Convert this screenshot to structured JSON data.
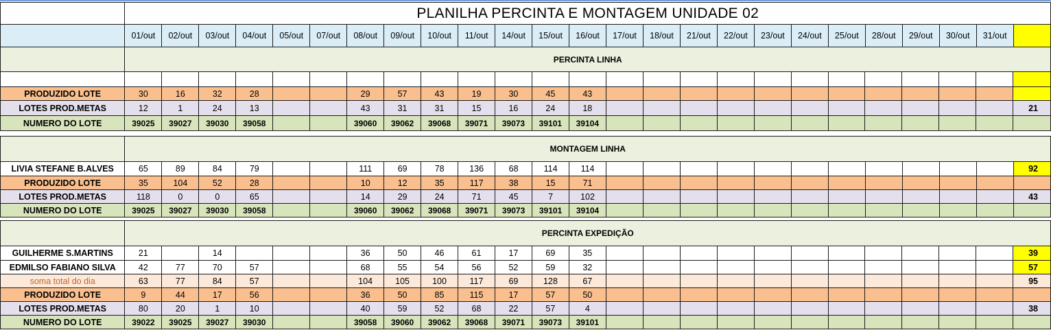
{
  "title": "PLANILHA PERCINTA E MONTAGEM UNIDADE 02",
  "dates": [
    "01/out",
    "02/out",
    "03/out",
    "04/out",
    "05/out",
    "07/out",
    "08/out",
    "09/out",
    "10/out",
    "11/out",
    "14/out",
    "15/out",
    "16/out",
    "17/out",
    "18/out",
    "21/out",
    "22/out",
    "23/out",
    "24/out",
    "25/out",
    "28/out",
    "29/out",
    "30/out",
    "31/out"
  ],
  "colors": {
    "header_bg": "#dbeef7",
    "section_bg": "#ebf1de",
    "produzido_bg": "#fabf8f",
    "metas_bg": "#e4dfec",
    "lote_bg": "#d8e4bc",
    "soma_bg": "#fde9d9",
    "highlight": "#ffff00"
  },
  "sections": [
    {
      "title": "PERCINTA LINHA",
      "rows": [
        {
          "label": "",
          "style": "white",
          "values": [
            "",
            "",
            "",
            "",
            "",
            "",
            "",
            "",
            "",
            "",
            "",
            "",
            "",
            "",
            "",
            "",
            "",
            "",
            "",
            "",
            "",
            "",
            "",
            ""
          ],
          "total": "",
          "total_yellow": true
        },
        {
          "label": "PRODUZIDO LOTE",
          "style": "orange",
          "values": [
            "30",
            "16",
            "32",
            "28",
            "",
            "",
            "29",
            "57",
            "43",
            "19",
            "30",
            "45",
            "43",
            "",
            "",
            "",
            "",
            "",
            "",
            "",
            "",
            "",
            "",
            ""
          ],
          "total": "",
          "total_yellow": true
        },
        {
          "label": "LOTES PROD.METAS",
          "style": "lav",
          "values": [
            "12",
            "1",
            "24",
            "13",
            "",
            "",
            "43",
            "31",
            "31",
            "15",
            "16",
            "24",
            "18",
            "",
            "",
            "",
            "",
            "",
            "",
            "",
            "",
            "",
            "",
            ""
          ],
          "total": "21",
          "total_yellow": false
        },
        {
          "label": "NUMERO DO LOTE",
          "style": "green",
          "values": [
            "39025",
            "39027",
            "39030",
            "39058",
            "",
            "",
            "39060",
            "39062",
            "39068",
            "39071",
            "39073",
            "39101",
            "39104",
            "",
            "",
            "",
            "",
            "",
            "",
            "",
            "",
            "",
            "",
            ""
          ],
          "total": "",
          "total_yellow": false
        }
      ]
    },
    {
      "title": "MONTAGEM LINHA",
      "rows": [
        {
          "label": "LIVIA STEFANE B.ALVES",
          "style": "white",
          "values": [
            "65",
            "89",
            "84",
            "79",
            "",
            "",
            "111",
            "69",
            "78",
            "136",
            "68",
            "114",
            "114",
            "",
            "",
            "",
            "",
            "",
            "",
            "",
            "",
            "",
            "",
            ""
          ],
          "total": "92",
          "total_yellow": true
        },
        {
          "label": "PRODUZIDO LOTE",
          "style": "orange",
          "values": [
            "35",
            "104",
            "52",
            "28",
            "",
            "",
            "10",
            "12",
            "35",
            "117",
            "38",
            "15",
            "71",
            "",
            "",
            "",
            "",
            "",
            "",
            "",
            "",
            "",
            "",
            ""
          ],
          "total": "",
          "total_yellow": false
        },
        {
          "label": "LOTES PROD.METAS",
          "style": "lav",
          "values": [
            "118",
            "0",
            "0",
            "65",
            "",
            "",
            "14",
            "29",
            "24",
            "71",
            "45",
            "7",
            "102",
            "",
            "",
            "",
            "",
            "",
            "",
            "",
            "",
            "",
            "",
            ""
          ],
          "total": "43",
          "total_yellow": false
        },
        {
          "label": "NUMERO DO LOTE",
          "style": "green",
          "values": [
            "39025",
            "39027",
            "39030",
            "39058",
            "",
            "",
            "39060",
            "39062",
            "39068",
            "39071",
            "39073",
            "39101",
            "39104",
            "",
            "",
            "",
            "",
            "",
            "",
            "",
            "",
            "",
            "",
            ""
          ],
          "total": "",
          "total_yellow": false
        }
      ]
    },
    {
      "title": "PERCINTA EXPEDIÇÃO",
      "rows": [
        {
          "label": "GUILHERME S.MARTINS",
          "style": "white",
          "values": [
            "21",
            "",
            "14",
            "",
            "",
            "",
            "36",
            "50",
            "46",
            "61",
            "17",
            "69",
            "35",
            "",
            "",
            "",
            "",
            "",
            "",
            "",
            "",
            "",
            "",
            ""
          ],
          "total": "39",
          "total_yellow": true
        },
        {
          "label": "EDMILSO FABIANO SILVA",
          "style": "white",
          "values": [
            "42",
            "77",
            "70",
            "57",
            "",
            "",
            "68",
            "55",
            "54",
            "56",
            "52",
            "59",
            "32",
            "",
            "",
            "",
            "",
            "",
            "",
            "",
            "",
            "",
            "",
            ""
          ],
          "total": "57",
          "total_yellow": true
        },
        {
          "label": "soma total  do dia",
          "style": "peach",
          "values": [
            "63",
            "77",
            "84",
            "57",
            "",
            "",
            "104",
            "105",
            "100",
            "117",
            "69",
            "128",
            "67",
            "",
            "",
            "",
            "",
            "",
            "",
            "",
            "",
            "",
            "",
            ""
          ],
          "total": "95",
          "total_yellow": false
        },
        {
          "label": "PRODUZIDO LOTE",
          "style": "orange",
          "values": [
            "9",
            "44",
            "17",
            "56",
            "",
            "",
            "36",
            "50",
            "85",
            "115",
            "17",
            "57",
            "50",
            "",
            "",
            "",
            "",
            "",
            "",
            "",
            "",
            "",
            "",
            ""
          ],
          "total": "",
          "total_yellow": false
        },
        {
          "label": "LOTES PROD.METAS",
          "style": "lav",
          "values": [
            "80",
            "20",
            "1",
            "10",
            "",
            "",
            "40",
            "59",
            "52",
            "68",
            "22",
            "57",
            "4",
            "",
            "",
            "",
            "",
            "",
            "",
            "",
            "",
            "",
            "",
            ""
          ],
          "total": "38",
          "total_yellow": false
        },
        {
          "label": "NUMERO DO LOTE",
          "style": "green",
          "values": [
            "39022",
            "39025",
            "39027",
            "39030",
            "",
            "",
            "39058",
            "39060",
            "39062",
            "39068",
            "39071",
            "39073",
            "39101",
            "",
            "",
            "",
            "",
            "",
            "",
            "",
            "",
            "",
            "",
            ""
          ],
          "total": "",
          "total_yellow": false
        }
      ]
    }
  ]
}
